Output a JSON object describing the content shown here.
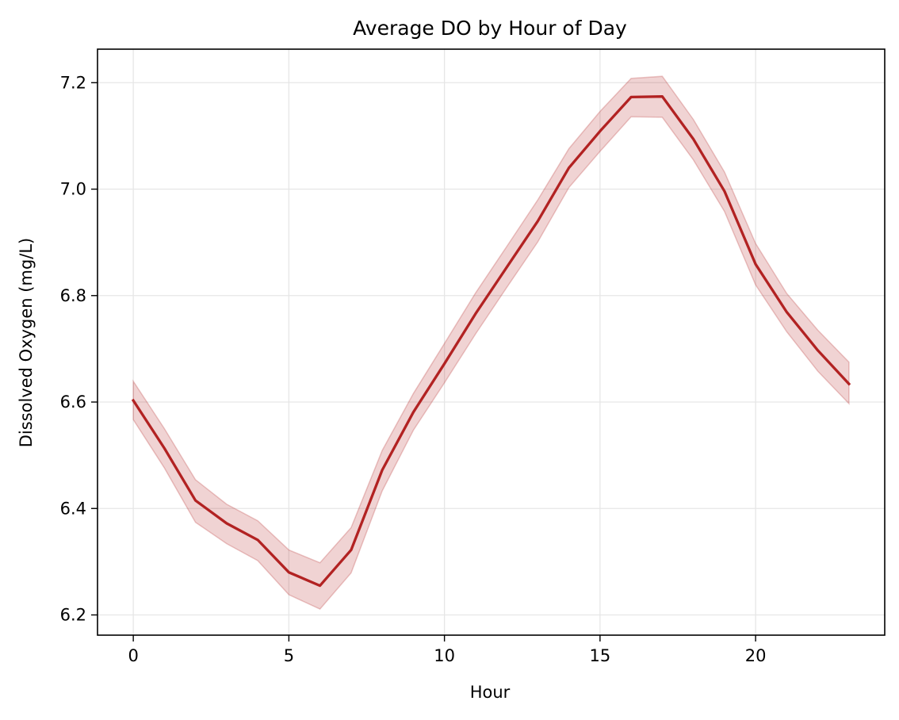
{
  "chart_data": {
    "type": "line",
    "title": "Average DO by Hour of Day",
    "xlabel": "Hour",
    "ylabel": "Dissolved Oxygen (mg/L)",
    "xlim": [
      -1.15,
      24.15
    ],
    "ylim": [
      6.162,
      7.263
    ],
    "xticks": [
      0,
      5,
      10,
      15,
      20
    ],
    "yticks": [
      6.2,
      6.4,
      6.6,
      6.8,
      7.0,
      7.2
    ],
    "ytick_labels": [
      "6.2",
      "6.4",
      "6.6",
      "6.8",
      "7.0",
      "7.2"
    ],
    "grid": true,
    "series": [
      {
        "x": [
          0,
          1,
          2,
          3,
          4,
          5,
          6,
          7,
          8,
          9,
          10,
          11,
          12,
          13,
          14,
          15,
          16,
          17,
          18,
          19,
          20,
          21,
          22,
          23
        ],
        "y": [
          6.603,
          6.513,
          6.415,
          6.372,
          6.341,
          6.28,
          6.255,
          6.322,
          6.472,
          6.581,
          6.672,
          6.766,
          6.853,
          6.94,
          7.04,
          7.109,
          7.173,
          7.174,
          7.094,
          6.996,
          6.859,
          6.769,
          6.697,
          6.634
        ],
        "ci_lower": [
          6.567,
          6.476,
          6.374,
          6.334,
          6.302,
          6.238,
          6.211,
          6.279,
          6.433,
          6.547,
          6.636,
          6.728,
          6.815,
          6.901,
          7.003,
          7.071,
          7.136,
          7.135,
          7.055,
          6.958,
          6.82,
          6.732,
          6.658,
          6.597
        ],
        "ci_upper": [
          6.639,
          6.55,
          6.454,
          6.408,
          6.377,
          6.322,
          6.298,
          6.364,
          6.509,
          6.616,
          6.71,
          6.805,
          6.892,
          6.98,
          7.076,
          7.146,
          7.208,
          7.212,
          7.131,
          7.032,
          6.898,
          6.804,
          6.735,
          6.675
        ]
      }
    ],
    "colors": {
      "line": "#b22222",
      "band": "#b22222",
      "grid": "#e6e6e6",
      "axes": "#000000"
    }
  }
}
